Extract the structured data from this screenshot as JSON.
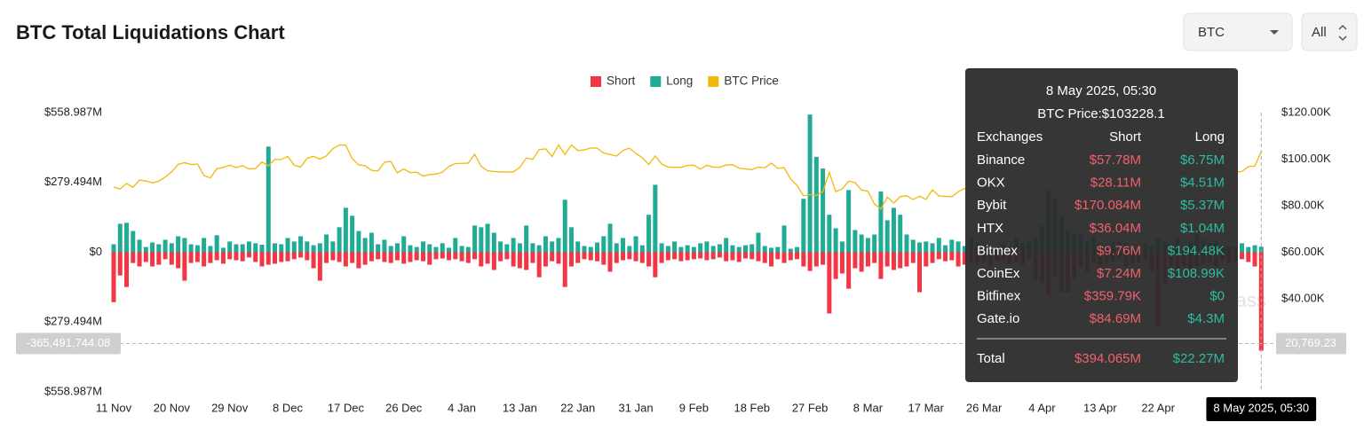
{
  "header": {
    "title": "BTC Total Liquidations Chart",
    "coin_select": "BTC",
    "range_select": "All"
  },
  "chart_data": {
    "type": "bar",
    "watermark": "coinglass",
    "categories": [
      "11 Nov",
      null,
      null,
      null,
      null,
      null,
      null,
      null,
      null,
      "20 Nov",
      null,
      null,
      null,
      null,
      null,
      null,
      null,
      null,
      "29 Nov",
      null,
      null,
      null,
      null,
      null,
      null,
      null,
      null,
      "8 Dec",
      null,
      null,
      null,
      null,
      null,
      null,
      null,
      null,
      "17 Dec",
      null,
      null,
      null,
      null,
      null,
      null,
      null,
      null,
      "26 Dec",
      null,
      null,
      null,
      null,
      null,
      null,
      null,
      null,
      "4 Jan",
      null,
      null,
      null,
      null,
      null,
      null,
      null,
      null,
      "13 Jan",
      null,
      null,
      null,
      null,
      null,
      null,
      null,
      null,
      "22 Jan",
      null,
      null,
      null,
      null,
      null,
      null,
      null,
      null,
      "31 Jan",
      null,
      null,
      null,
      null,
      null,
      null,
      null,
      null,
      "9 Feb",
      null,
      null,
      null,
      null,
      null,
      null,
      null,
      null,
      "18 Feb",
      null,
      null,
      null,
      null,
      null,
      null,
      null,
      null,
      "27 Feb",
      null,
      null,
      null,
      null,
      null,
      null,
      null,
      null,
      "8 Mar",
      null,
      null,
      null,
      null,
      null,
      null,
      null,
      null,
      "17 Mar",
      null,
      null,
      null,
      null,
      null,
      null,
      null,
      null,
      "26 Mar",
      null,
      null,
      null,
      null,
      null,
      null,
      null,
      null,
      "4 Apr",
      null,
      null,
      null,
      null,
      null,
      null,
      null,
      null,
      "13 Apr",
      null,
      null,
      null,
      null,
      null,
      null,
      null,
      null,
      "22 Apr",
      null,
      null,
      null,
      null,
      null,
      null,
      null,
      null,
      null,
      null,
      null,
      null,
      null,
      null,
      null,
      "8 May 2025, 05:30"
    ],
    "series": [
      {
        "name": "Short",
        "type": "bar",
        "color": "#f23645",
        "values": [
          -200,
          -93,
          -139,
          -43,
          -57,
          -39,
          -57,
          -50,
          -28,
          -50,
          -64,
          -114,
          -43,
          -39,
          -57,
          -43,
          -32,
          -46,
          -28,
          -32,
          -36,
          -21,
          -39,
          -57,
          -50,
          -46,
          -39,
          -36,
          -28,
          -21,
          -32,
          -64,
          -114,
          -43,
          -32,
          -39,
          -57,
          -43,
          -64,
          -50,
          -36,
          -28,
          -39,
          -43,
          -32,
          -46,
          -39,
          -32,
          -36,
          -50,
          -28,
          -25,
          -32,
          -28,
          -36,
          -43,
          -28,
          -57,
          -46,
          -71,
          -36,
          -28,
          -57,
          -64,
          -71,
          -43,
          -100,
          -57,
          -36,
          -46,
          -139,
          -57,
          -43,
          -28,
          -32,
          -36,
          -50,
          -78,
          -43,
          -32,
          -28,
          -36,
          -43,
          -57,
          -100,
          -43,
          -32,
          -28,
          -36,
          -32,
          -28,
          -25,
          -32,
          -28,
          -21,
          -36,
          -32,
          -39,
          -25,
          -28,
          -36,
          -43,
          -57,
          -28,
          -43,
          -32,
          -28,
          -57,
          -75,
          -57,
          -50,
          -245,
          -107,
          -85,
          -146,
          -64,
          -78,
          -57,
          -43,
          -107,
          -57,
          -71,
          -64,
          -57,
          -43,
          -160,
          -57,
          -43,
          -28,
          -36,
          -32,
          -57,
          -50,
          -39,
          -43,
          -36,
          -57,
          -32,
          -28,
          -43,
          -39,
          -50,
          -28,
          -107,
          -121,
          -171,
          -100,
          -160,
          -160,
          -107,
          -57,
          -78,
          -43,
          -50,
          -43,
          -36,
          -28,
          -57,
          -43,
          -39,
          -32,
          -78,
          -299,
          -128,
          -85,
          -71,
          -57,
          -64,
          -57,
          -50,
          -43,
          -57,
          -32,
          -43,
          -36,
          -28,
          -39,
          -57,
          -394.065
        ]
      },
      {
        "name": "Long",
        "type": "bar",
        "color": "#22ab94",
        "values": [
          32,
          114,
          118,
          85,
          50,
          21,
          39,
          32,
          50,
          36,
          64,
          57,
          32,
          28,
          57,
          25,
          68,
          18,
          43,
          32,
          32,
          43,
          36,
          30,
          423,
          36,
          32,
          57,
          43,
          64,
          43,
          28,
          36,
          71,
          43,
          100,
          178,
          146,
          85,
          57,
          78,
          32,
          50,
          25,
          36,
          64,
          28,
          21,
          43,
          32,
          21,
          36,
          18,
          57,
          25,
          21,
          107,
          100,
          114,
          78,
          43,
          32,
          57,
          36,
          107,
          36,
          28,
          64,
          43,
          57,
          210,
          100,
          43,
          25,
          21,
          39,
          64,
          114,
          36,
          57,
          25,
          64,
          28,
          150,
          270,
          36,
          25,
          43,
          21,
          28,
          21,
          36,
          43,
          25,
          32,
          57,
          28,
          21,
          28,
          32,
          78,
          25,
          18,
          21,
          107,
          14,
          21,
          214,
          551,
          382,
          335,
          150,
          96,
          43,
          249,
          89,
          71,
          57,
          71,
          243,
          128,
          178,
          150,
          71,
          50,
          39,
          43,
          36,
          57,
          28,
          50,
          43,
          25,
          57,
          36,
          28,
          21,
          18,
          36,
          25,
          57,
          36,
          43,
          64,
          107,
          249,
          214,
          143,
          85,
          75,
          71,
          43,
          64,
          36,
          28,
          39,
          43,
          36,
          21,
          28,
          36,
          25,
          57,
          43,
          36,
          57,
          28,
          43,
          71,
          50,
          36,
          43,
          28,
          21,
          25,
          36,
          21,
          28,
          22.27
        ]
      },
      {
        "name": "BTC Price",
        "type": "line",
        "axis": "y2",
        "color": "#f0b90b",
        "values": [
          88.0,
          87.2,
          89.5,
          87.9,
          91.0,
          90.6,
          89.8,
          90.5,
          92.3,
          94.5,
          97.8,
          98.5,
          97.7,
          97.9,
          93.0,
          91.9,
          95.9,
          96.5,
          97.4,
          96.4,
          97.2,
          95.8,
          96.0,
          98.8,
          97.1,
          99.9,
          99.8,
          101.2,
          97.4,
          96.6,
          100.4,
          101.2,
          100.0,
          101.4,
          104.5,
          106.1,
          106.0,
          100.2,
          97.5,
          97.2,
          95.2,
          94.9,
          98.7,
          99.0,
          94.1,
          95.8,
          94.2,
          94.4,
          92.7,
          93.4,
          93.6,
          94.4,
          96.9,
          98.1,
          98.2,
          98.3,
          102.1,
          96.9,
          95.0,
          94.7,
          94.5,
          94.5,
          94.5,
          96.5,
          100.5,
          99.9,
          104.1,
          104.4,
          101.1,
          106.1,
          102.0,
          106.1,
          103.7,
          104.0,
          104.8,
          104.7,
          102.6,
          102.0,
          101.3,
          103.7,
          104.7,
          102.4,
          100.6,
          97.7,
          101.4,
          97.9,
          96.6,
          96.5,
          96.5,
          97.3,
          97.4,
          95.7,
          97.4,
          96.6,
          96.5,
          97.5,
          97.6,
          96.1,
          95.8,
          95.5,
          96.6,
          96.3,
          98.3,
          96.1,
          96.3,
          91.5,
          88.7,
          84.3,
          84.7,
          84.4,
          86.0,
          94.3,
          86.1,
          87.2,
          90.6,
          89.9,
          86.7,
          86.2,
          80.7,
          78.6,
          83.7,
          81.1,
          83.9,
          84.3,
          82.6,
          84.1,
          82.7,
          86.8,
          84.2,
          84.0,
          83.8,
          86.0,
          87.4,
          87.3,
          87.0,
          86.9,
          87.2,
          84.4,
          82.6,
          82.4,
          82.5,
          85.1,
          82.5,
          83.1,
          83.9,
          83.5,
          78.3,
          79.2,
          76.3,
          82.6,
          79.6,
          83.4,
          85.3,
          83.8,
          84.6,
          83.7,
          84.0,
          84.9,
          84.5,
          85.2,
          87.4,
          93.4,
          93.7,
          93.9,
          94.7,
          94.3,
          94.0,
          95.0,
          94.0,
          94.9,
          94.2,
          96.5,
          96.9,
          95.9,
          94.3,
          94.7,
          96.8,
          97.0,
          103.2
        ]
      }
    ],
    "ylim": [
      -558.987,
      558.987
    ],
    "yticks": [
      {
        "value": 558.987,
        "label": "$558.987M"
      },
      {
        "value": 279.494,
        "label": "$279.494M"
      },
      {
        "value": 0,
        "label": "$0"
      },
      {
        "value": -279.494,
        "label": "$279.494M"
      },
      {
        "value": -558.987,
        "label": "$558.987M"
      }
    ],
    "y2lim": [
      0,
      120
    ],
    "y2ticks": [
      {
        "value": 120,
        "label": "$120.00K"
      },
      {
        "value": 100,
        "label": "$100.00K"
      },
      {
        "value": 80,
        "label": "$80.00K"
      },
      {
        "value": 60,
        "label": "$60.00K"
      },
      {
        "value": 40,
        "label": "$40.00K"
      }
    ],
    "legend": "top",
    "crosshair": {
      "y": {
        "value": -365.49174408,
        "label": "-365,491,744.08"
      },
      "y2": {
        "value": 20.76923,
        "label": "20,769.23"
      }
    },
    "tooltip": {
      "title": "8 May 2025, 05:30",
      "price": "BTC Price:$103228.1",
      "columns": [
        "Exchanges",
        "Short",
        "Long"
      ],
      "rows": [
        [
          "Binance",
          "$57.78M",
          "$6.75M"
        ],
        [
          "OKX",
          "$28.11M",
          "$4.51M"
        ],
        [
          "Bybit",
          "$170.084M",
          "$5.37M"
        ],
        [
          "HTX",
          "$36.04M",
          "$1.04M"
        ],
        [
          "Bitmex",
          "$9.76M",
          "$194.48K"
        ],
        [
          "CoinEx",
          "$7.24M",
          "$108.99K"
        ],
        [
          "Bitfinex",
          "$359.79K",
          "$0"
        ],
        [
          "Gate.io",
          "$84.69M",
          "$4.3M"
        ]
      ],
      "total": [
        "Total",
        "$394.065M",
        "$22.27M"
      ]
    }
  }
}
